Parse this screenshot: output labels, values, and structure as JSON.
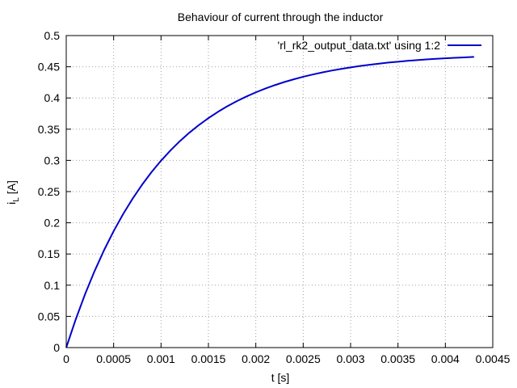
{
  "chart_data": {
    "type": "line",
    "title": "Behaviour of current through the inductor",
    "xlabel": "t [s]",
    "ylabel_main": "i",
    "ylabel_sub": "L",
    "ylabel_unit": "[A]",
    "xlim": [
      0,
      0.0045
    ],
    "ylim": [
      0,
      0.5
    ],
    "xticks": [
      {
        "value": 0,
        "label": "0"
      },
      {
        "value": 0.0005,
        "label": "0.0005"
      },
      {
        "value": 0.001,
        "label": "0.001"
      },
      {
        "value": 0.0015,
        "label": "0.0015"
      },
      {
        "value": 0.002,
        "label": "0.002"
      },
      {
        "value": 0.0025,
        "label": "0.0025"
      },
      {
        "value": 0.003,
        "label": "0.003"
      },
      {
        "value": 0.0035,
        "label": "0.0035"
      },
      {
        "value": 0.004,
        "label": "0.004"
      },
      {
        "value": 0.0045,
        "label": "0.0045"
      }
    ],
    "yticks": [
      {
        "value": 0,
        "label": "0"
      },
      {
        "value": 0.05,
        "label": "0.05"
      },
      {
        "value": 0.1,
        "label": "0.1"
      },
      {
        "value": 0.15,
        "label": "0.15"
      },
      {
        "value": 0.2,
        "label": "0.2"
      },
      {
        "value": 0.25,
        "label": "0.25"
      },
      {
        "value": 0.3,
        "label": "0.3"
      },
      {
        "value": 0.35,
        "label": "0.35"
      },
      {
        "value": 0.4,
        "label": "0.4"
      },
      {
        "value": 0.45,
        "label": "0.45"
      },
      {
        "value": 0.5,
        "label": "0.5"
      }
    ],
    "grid": true,
    "legend_position": "top-right",
    "series": [
      {
        "name": "'rl_rk2_output_data.txt' using 1:2",
        "color": "#0000cc",
        "x": [
          0,
          0.0001,
          0.0002,
          0.0003,
          0.0004,
          0.0005,
          0.0006,
          0.0007,
          0.0008,
          0.0009,
          0.001,
          0.0011,
          0.0012,
          0.0013,
          0.0014,
          0.0015,
          0.0016,
          0.0017,
          0.0018,
          0.0019,
          0.002,
          0.0021,
          0.0022,
          0.0023,
          0.0024,
          0.0025,
          0.0026,
          0.0027,
          0.0028,
          0.0029,
          0.003,
          0.0031,
          0.0032,
          0.0033,
          0.0034,
          0.0035,
          0.0036,
          0.0037,
          0.0038,
          0.0039,
          0.004,
          0.0041,
          0.0042,
          0.0043
        ],
        "y": [
          0,
          0.0452,
          0.0861,
          0.123,
          0.1564,
          0.1866,
          0.2139,
          0.2386,
          0.261,
          0.2812,
          0.2995,
          0.316,
          0.331,
          0.3445,
          0.3567,
          0.3677,
          0.3777,
          0.3868,
          0.3949,
          0.4023,
          0.409,
          0.4151,
          0.4205,
          0.4255,
          0.4299,
          0.434,
          0.4376,
          0.4409,
          0.4439,
          0.4466,
          0.449,
          0.4512,
          0.4532,
          0.455,
          0.4567,
          0.4581,
          0.4595,
          0.4607,
          0.4618,
          0.4627,
          0.4636,
          0.4644,
          0.4651,
          0.4658
        ]
      }
    ]
  }
}
